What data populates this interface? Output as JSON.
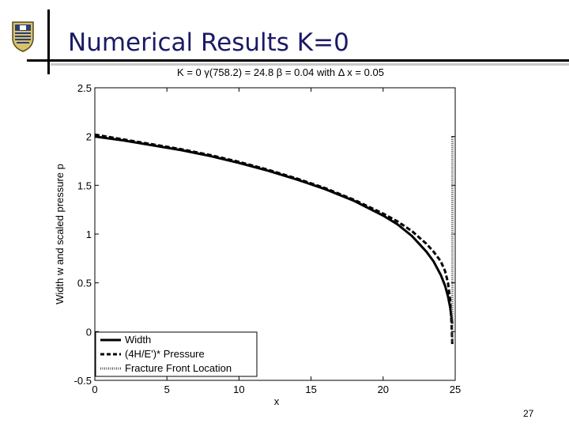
{
  "slide": {
    "title": "Numerical Results K=0",
    "page_number": "27"
  },
  "chart_data": {
    "type": "line",
    "title": "K = 0   γ(758.2) = 24.8 β = 0.04 with  Δ x = 0.05",
    "xlabel": "x",
    "ylabel": "Width w and scaled pressure p",
    "xlim": [
      0,
      25
    ],
    "ylim": [
      -0.5,
      2.5
    ],
    "xticks": [
      "0",
      "5",
      "10",
      "15",
      "20",
      "25"
    ],
    "yticks": [
      "-0.5",
      "0",
      "0.5",
      "1",
      "1.5",
      "2",
      "2.5"
    ],
    "grid": false,
    "legend_position": "bottom-left",
    "series": [
      {
        "name": "Width",
        "style": "solid",
        "x": [
          0,
          2,
          4,
          6,
          8,
          10,
          12,
          14,
          16,
          18,
          20,
          21,
          22,
          23,
          23.5,
          24,
          24.3,
          24.5,
          24.65,
          24.75,
          24.8
        ],
        "y": [
          2.0,
          1.96,
          1.91,
          1.86,
          1.8,
          1.73,
          1.65,
          1.56,
          1.46,
          1.34,
          1.19,
          1.1,
          0.98,
          0.82,
          0.72,
          0.58,
          0.47,
          0.36,
          0.25,
          0.14,
          0.08
        ]
      },
      {
        "name": "(4H/E')* Pressure",
        "style": "dashed",
        "x": [
          0,
          2,
          4,
          6,
          8,
          10,
          12,
          14,
          16,
          18,
          20,
          21,
          22,
          23,
          23.5,
          24,
          24.3,
          24.5,
          24.65,
          24.75,
          24.8
        ],
        "y": [
          2.02,
          1.97,
          1.92,
          1.87,
          1.81,
          1.74,
          1.66,
          1.57,
          1.47,
          1.35,
          1.21,
          1.13,
          1.03,
          0.9,
          0.82,
          0.72,
          0.62,
          0.5,
          0.32,
          0.08,
          -0.15
        ]
      },
      {
        "name": "Fracture Front Location",
        "style": "dotted",
        "x": [
          24.8,
          24.8
        ],
        "y": [
          -0.1,
          2.0
        ]
      }
    ]
  }
}
